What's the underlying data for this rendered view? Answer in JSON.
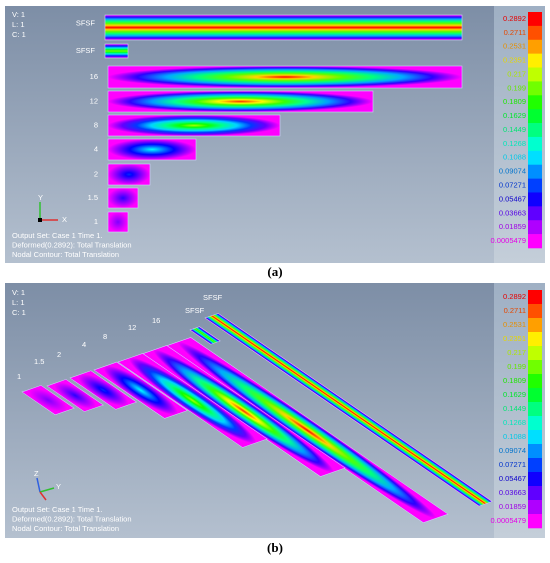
{
  "panels": [
    {
      "caption": "(a)",
      "viewport": [
        "V: 1",
        "L: 1",
        "C: 1"
      ],
      "strips": [
        "SFSF",
        "SFSF",
        "16",
        "12",
        "8",
        "4",
        "2",
        "1.5",
        "1"
      ],
      "triad": [
        "X",
        "Y"
      ],
      "output": [
        "Output Set: Case 1 Time 1.",
        "Deformed(0.2892): Total Translation",
        "Nodal Contour: Total Translation"
      ],
      "legend": [
        "0.2892",
        "0.2711",
        "0.2531",
        "0.2351",
        "0.217",
        "0.199",
        "0.1809",
        "0.1629",
        "0.1449",
        "0.1268",
        "0.1088",
        "0.09074",
        "0.07271",
        "0.05467",
        "0.03663",
        "0.01859",
        "0.0005479"
      ]
    },
    {
      "caption": "(b)",
      "viewport": [
        "V: 1",
        "L: 1",
        "C: 1"
      ],
      "strips": [
        "SFSF",
        "SFSF",
        "16",
        "12",
        "8",
        "4",
        "2",
        "1.5",
        "1"
      ],
      "triad": [
        "Z",
        "Y"
      ],
      "output": [
        "Output Set: Case 1 Time 1.",
        "Deformed(0.2892): Total Translation",
        "Nodal Contour: Total Translation"
      ],
      "legend": [
        "0.2892",
        "0.2711",
        "0.2531",
        "0.2351",
        "0.217",
        "0.199",
        "0.1809",
        "0.1629",
        "0.1449",
        "0.1268",
        "0.1088",
        "0.09074",
        "0.07271",
        "0.05467",
        "0.03663",
        "0.01859",
        "0.0005479"
      ]
    }
  ]
}
